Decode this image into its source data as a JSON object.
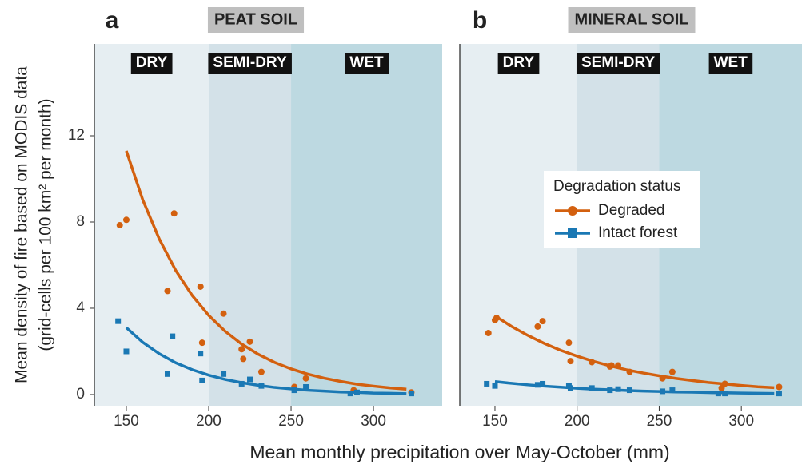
{
  "chart_data": [
    {
      "type": "scatter",
      "panel": "a",
      "title": "PEAT SOIL",
      "ylabel": [
        "Mean density of fire based on MODIS data",
        "(grid-cells per 100 km² per month)"
      ],
      "xlabel": "Mean monthly precipitation over May-October (mm)",
      "xlim": [
        130.6,
        341.7
      ],
      "ylim": [
        -0.52,
        16.26
      ],
      "xticks": [
        150,
        200,
        250,
        300
      ],
      "yticks": [
        0,
        4,
        8,
        12
      ],
      "region_breaks": [
        200,
        250
      ],
      "regions": [
        {
          "label": "DRY",
          "color": "#e6eef2"
        },
        {
          "label": "SEMI-DRY",
          "color": "#d3e1e8"
        },
        {
          "label": "WET",
          "color": "#bdd9e1"
        }
      ],
      "series": [
        {
          "name": "Degraded",
          "color": "#d3600f",
          "marker": "circle",
          "x": [
            146,
            150,
            175,
            179,
            195,
            196,
            209,
            220,
            221,
            225,
            232,
            252,
            259,
            288,
            323
          ],
          "values": [
            7.85,
            8.1,
            4.8,
            8.4,
            5.0,
            2.4,
            3.75,
            2.1,
            1.65,
            2.45,
            1.05,
            0.35,
            0.75,
            0.2,
            0.1
          ]
        },
        {
          "name": "Intact forest",
          "color": "#1a78b4",
          "marker": "square",
          "x": [
            145,
            150,
            175,
            178,
            195,
            196,
            209,
            220,
            225,
            232,
            252,
            259,
            286,
            290,
            323
          ],
          "values": [
            3.4,
            2.0,
            0.95,
            2.7,
            1.9,
            0.65,
            0.95,
            0.5,
            0.7,
            0.4,
            0.2,
            0.35,
            0.05,
            0.1,
            0.05
          ]
        }
      ],
      "fits": [
        {
          "color": "#d3600f",
          "x": [
            150,
            160,
            170,
            180,
            190,
            200,
            210,
            220,
            230,
            240,
            250,
            260,
            270,
            280,
            290,
            300,
            310,
            320
          ],
          "values": [
            11.3,
            9.02,
            7.21,
            5.75,
            4.59,
            3.67,
            2.93,
            2.34,
            1.87,
            1.49,
            1.19,
            0.95,
            0.76,
            0.61,
            0.48,
            0.39,
            0.31,
            0.25
          ]
        },
        {
          "color": "#1a78b4",
          "x": [
            150,
            160,
            170,
            180,
            190,
            200,
            210,
            220,
            230,
            240,
            250,
            260,
            270,
            280,
            290,
            300,
            310,
            320
          ],
          "values": [
            3.1,
            2.42,
            1.89,
            1.47,
            1.15,
            0.9,
            0.7,
            0.55,
            0.43,
            0.33,
            0.26,
            0.2,
            0.16,
            0.12,
            0.1,
            0.07,
            0.06,
            0.04
          ]
        }
      ]
    },
    {
      "type": "scatter",
      "panel": "b",
      "title": "MINERAL SOIL",
      "xlim": [
        128.6,
        336.9
      ],
      "ylim": [
        -0.52,
        16.26
      ],
      "xticks": [
        150,
        200,
        250,
        300
      ],
      "region_breaks": [
        200,
        250
      ],
      "regions": [
        {
          "label": "DRY",
          "color": "#e6eef2"
        },
        {
          "label": "SEMI-DRY",
          "color": "#d3e1e8"
        },
        {
          "label": "WET",
          "color": "#bdd9e1"
        }
      ],
      "legend": "center",
      "legend_title": "Degradation status",
      "series": [
        {
          "name": "Degraded",
          "color": "#d3600f",
          "marker": "circle",
          "x": [
            146,
            150,
            151,
            176,
            179,
            195,
            196,
            209,
            220,
            221,
            225,
            232,
            252,
            258,
            288,
            290,
            323
          ],
          "values": [
            2.85,
            3.45,
            3.55,
            3.15,
            3.4,
            2.4,
            1.55,
            1.5,
            1.3,
            1.35,
            1.35,
            1.05,
            0.75,
            1.05,
            0.3,
            0.5,
            0.35
          ]
        },
        {
          "name": "Intact forest",
          "color": "#1a78b4",
          "marker": "square",
          "x": [
            145,
            150,
            176,
            179,
            195,
            196,
            209,
            220,
            225,
            232,
            252,
            258,
            286,
            290,
            323
          ],
          "values": [
            0.5,
            0.4,
            0.45,
            0.5,
            0.4,
            0.3,
            0.3,
            0.2,
            0.25,
            0.2,
            0.15,
            0.2,
            0.05,
            0.05,
            0.05
          ]
        }
      ],
      "fits": [
        {
          "color": "#d3600f",
          "x": [
            150,
            160,
            170,
            180,
            190,
            200,
            210,
            220,
            230,
            240,
            250,
            260,
            270,
            280,
            290,
            300,
            310,
            320
          ],
          "values": [
            3.65,
            3.16,
            2.74,
            2.37,
            2.05,
            1.78,
            1.54,
            1.33,
            1.15,
            1.0,
            0.87,
            0.75,
            0.65,
            0.56,
            0.49,
            0.42,
            0.36,
            0.32
          ]
        },
        {
          "color": "#1a78b4",
          "x": [
            150,
            160,
            170,
            180,
            190,
            200,
            210,
            220,
            230,
            240,
            250,
            260,
            270,
            280,
            290,
            300,
            310,
            320
          ],
          "values": [
            0.6,
            0.52,
            0.45,
            0.39,
            0.34,
            0.29,
            0.25,
            0.22,
            0.19,
            0.16,
            0.14,
            0.12,
            0.11,
            0.09,
            0.08,
            0.07,
            0.06,
            0.05
          ]
        }
      ]
    }
  ]
}
